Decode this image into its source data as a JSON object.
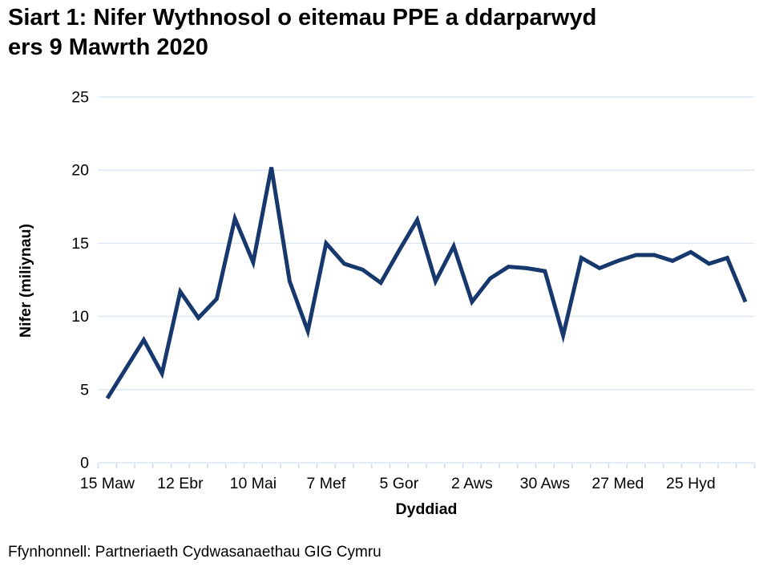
{
  "page": {
    "title_line1": "Siart 1: Nifer Wythnosol o eitemau PPE a ddarparwyd",
    "title_line2": "ers 9 Mawrth 2020",
    "source": "Ffynhonnell: Partneriaeth Cydwasanaethau GIG Cymru"
  },
  "chart_data": {
    "type": "line",
    "title": "Siart 1: Nifer Wythnosol o eitemau PPE a ddarparwyd ers 9 Mawrth 2020",
    "xlabel": "Dyddiad",
    "ylabel": "Nifer (miliynau)",
    "ylim": [
      0,
      25
    ],
    "yticks": [
      0,
      5,
      10,
      15,
      20,
      25
    ],
    "x_tick_labels": [
      "15 Maw",
      "12 Ebr",
      "10 Mai",
      "7 Mef",
      "5 Gor",
      "2 Aws",
      "30 Aws",
      "27 Med",
      "25 Hyd"
    ],
    "x_tick_indices": [
      0,
      4,
      8,
      12,
      16,
      20,
      24,
      28,
      32
    ],
    "n_points": 36,
    "values": [
      4.4,
      6.4,
      8.4,
      6.1,
      11.7,
      9.9,
      11.2,
      16.7,
      13.7,
      20.2,
      12.4,
      9.0,
      15.0,
      13.6,
      13.2,
      12.3,
      14.5,
      16.6,
      12.4,
      14.8,
      11.0,
      12.6,
      13.4,
      13.3,
      13.1,
      8.7,
      14.0,
      13.3,
      13.8,
      14.2,
      14.2,
      13.8,
      14.4,
      13.6,
      14.0,
      11.0
    ],
    "grid": "horizontal-only",
    "legend": "none",
    "line_color": "#16386c",
    "gridline_color": "#dae6f3",
    "tick_color": "#c9dcf0",
    "text_color": "#000000"
  }
}
